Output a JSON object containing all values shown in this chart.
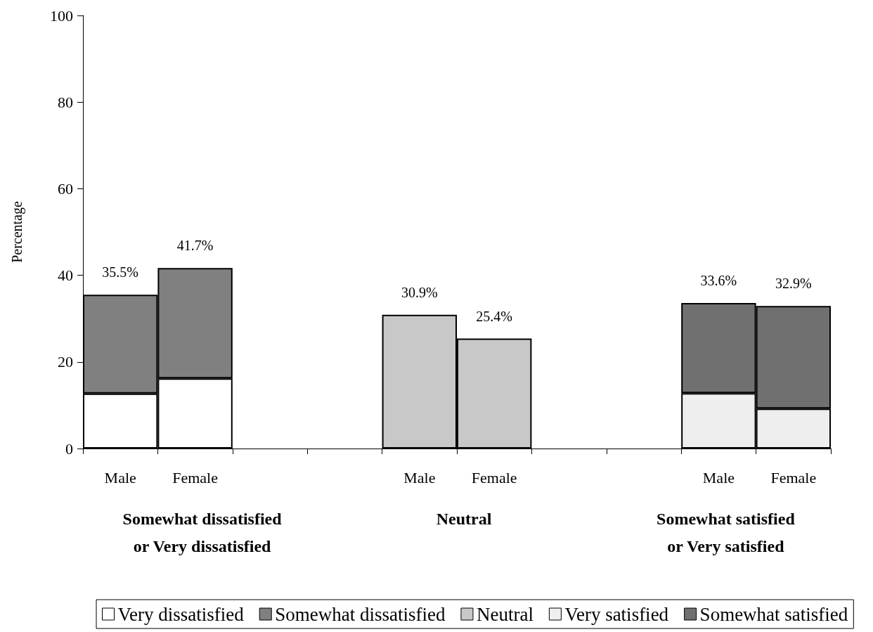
{
  "chart_data": {
    "type": "bar",
    "ylabel": "Percentage",
    "categories": [
      "Male",
      "Female",
      null,
      null,
      "Male",
      "Female",
      null,
      null,
      "Male",
      "Female"
    ],
    "series": [
      {
        "name": "Very dissatisfied",
        "color": "#ffffff",
        "values": [
          12.7,
          16.2,
          null,
          null,
          null,
          null,
          null,
          null,
          null,
          null
        ]
      },
      {
        "name": "Somewhat dissatisfied",
        "color": "#808080",
        "values": [
          22.8,
          25.5,
          null,
          null,
          null,
          null,
          null,
          null,
          null,
          null
        ]
      },
      {
        "name": "Neutral",
        "color": "#c8c8c8",
        "values": [
          null,
          null,
          null,
          null,
          30.9,
          25.4,
          null,
          null,
          null,
          null
        ]
      },
      {
        "name": "Very satisfied",
        "color": "#eeeeee",
        "values": [
          null,
          null,
          null,
          null,
          null,
          null,
          null,
          null,
          12.8,
          9.2
        ]
      },
      {
        "name": "Somewhat satisfied",
        "color": "#707070",
        "values": [
          null,
          null,
          null,
          null,
          null,
          null,
          null,
          null,
          20.8,
          23.7
        ]
      }
    ],
    "stacked": true,
    "ylim": [
      0,
      100
    ],
    "yticks": [
      0,
      20,
      40,
      60,
      80,
      100
    ],
    "legend": "bottom",
    "totals": [
      "35.5%",
      "41.7%",
      null,
      null,
      "30.9%",
      "25.4%",
      null,
      null,
      "33.6%",
      "32.9%"
    ],
    "annotations": [
      "Somewhat dissatisfied\nor Very dissatisfied",
      "Neutral",
      "Somewhat satisfied\nor Very satisfied"
    ]
  }
}
